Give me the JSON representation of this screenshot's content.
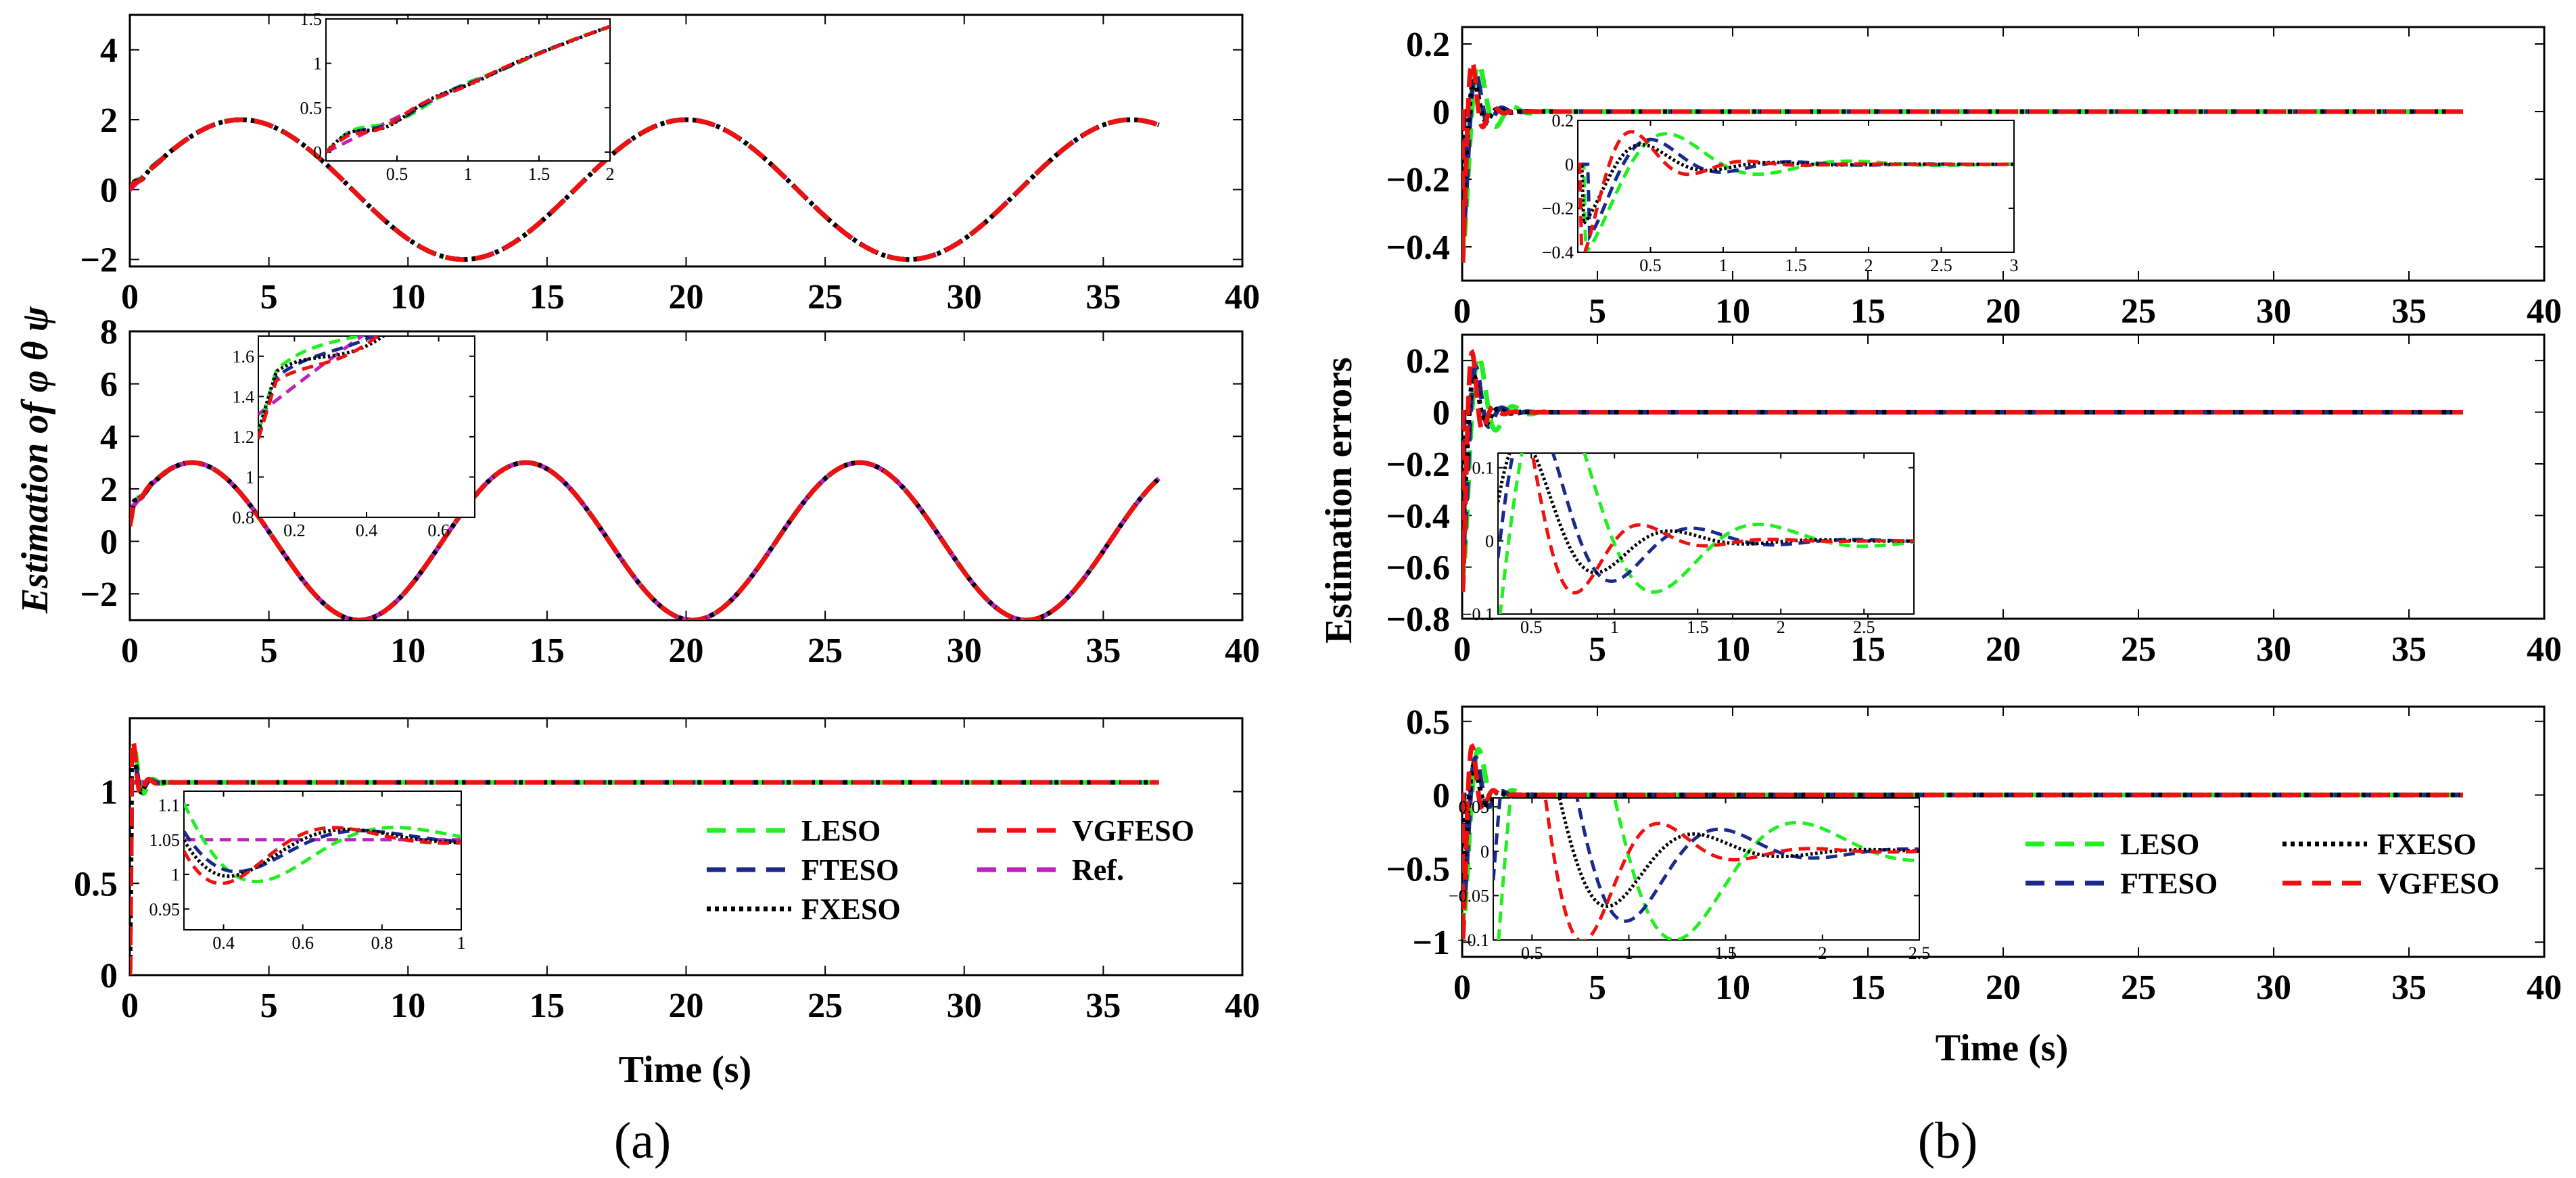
{
  "figure": {
    "panel_labels": [
      "(a)",
      "(b)"
    ],
    "ylabel_a": "Estimation of φ θ ψ",
    "ylabel_b": "Estimation errors",
    "xlabel": "Time (s)"
  },
  "series_styles": {
    "LESO": {
      "color": "#22ee22",
      "dash": "long"
    },
    "FTESO": {
      "color": "#1a2a8a",
      "dash": "long"
    },
    "FXESO": {
      "color": "#000000",
      "dash": "dot"
    },
    "VGFESO": {
      "color": "#ee1111",
      "dash": "long"
    },
    "Ref.": {
      "color": "#c020c0",
      "dash": "long"
    }
  },
  "chart_data": [
    {
      "id": "a1",
      "type": "line",
      "xlim": [
        0,
        40
      ],
      "ylim": [
        -2.2,
        5
      ],
      "xticks": [
        0,
        5,
        10,
        15,
        20,
        25,
        30,
        35,
        40
      ],
      "yticks": [
        -2,
        0,
        2,
        4
      ],
      "signal": {
        "kind": "sine",
        "amplitude": 2,
        "period": 16,
        "phase_shift": 0
      },
      "inset": {
        "xlim": [
          0,
          2
        ],
        "ylim": [
          -0.1,
          1.5
        ],
        "xticks": [
          0.5,
          1,
          1.5,
          2
        ],
        "xtick_labels": [
          "0.5",
          "1",
          "1.5",
          "2"
        ],
        "yticks": [
          0,
          0.5,
          1,
          1.5
        ],
        "ytick_labels": [
          "0",
          "0.5",
          "1",
          "1.5"
        ]
      }
    },
    {
      "id": "a2",
      "type": "line",
      "xlim": [
        0,
        40
      ],
      "ylim": [
        -3,
        8
      ],
      "xticks": [
        0,
        5,
        10,
        15,
        20,
        25,
        30,
        35,
        40
      ],
      "yticks": [
        -2,
        0,
        2,
        4,
        6,
        8
      ],
      "signal": {
        "kind": "sine",
        "amplitude": 3,
        "period": 12,
        "phase_shift": 0.4
      },
      "inset": {
        "xlim": [
          0.1,
          0.7
        ],
        "ylim": [
          0.8,
          1.7
        ],
        "xticks": [
          0.2,
          0.4,
          0.6
        ],
        "xtick_labels": [
          "0.2",
          "0.4",
          "0.6"
        ],
        "yticks": [
          0.8,
          1,
          1.2,
          1.4,
          1.6
        ],
        "ytick_labels": [
          "0.8",
          "1",
          "1.2",
          "1.4",
          "1.6"
        ]
      }
    },
    {
      "id": "a3",
      "type": "line",
      "xlim": [
        0,
        40
      ],
      "ylim": [
        0,
        1.4
      ],
      "xticks": [
        0,
        5,
        10,
        15,
        20,
        25,
        30,
        35,
        40
      ],
      "yticks": [
        0,
        0.5,
        1
      ],
      "yticks_labels": [
        "0",
        "0.5",
        "1"
      ],
      "signal": {
        "kind": "step",
        "value": 1.05
      },
      "inset": {
        "xlim": [
          0.3,
          1
        ],
        "ylim": [
          0.92,
          1.12
        ],
        "xticks": [
          0.4,
          0.6,
          0.8,
          1
        ],
        "xtick_labels": [
          "0.4",
          "0.6",
          "0.8",
          "1"
        ],
        "yticks": [
          0.95,
          1,
          1.05,
          1.1
        ],
        "ytick_labels": [
          "0.95",
          "1",
          "1.05",
          "1.1"
        ]
      },
      "legend": {
        "position": "lower-right",
        "entries": [
          "LESO",
          "VGFESO",
          "FTESO",
          "Ref.",
          "FXESO"
        ]
      }
    },
    {
      "id": "b1",
      "type": "line",
      "xlim": [
        0,
        40
      ],
      "ylim": [
        -0.5,
        0.25
      ],
      "xticks": [
        0,
        5,
        10,
        15,
        20,
        25,
        30,
        35,
        40
      ],
      "yticks": [
        -0.4,
        -0.2,
        0,
        0.2
      ],
      "signal": {
        "kind": "error",
        "overshoot": -0.45
      },
      "inset": {
        "xlim": [
          0,
          3
        ],
        "ylim": [
          -0.4,
          0.2
        ],
        "xticks": [
          0.5,
          1,
          1.5,
          2,
          2.5,
          3
        ],
        "xtick_labels": [
          "0.5",
          "1",
          "1.5",
          "2",
          "2.5",
          "3"
        ],
        "yticks": [
          -0.4,
          -0.2,
          0,
          0.2
        ],
        "ytick_labels": [
          "-0.4",
          "-0.2",
          "0",
          "0.2"
        ]
      }
    },
    {
      "id": "b2",
      "type": "line",
      "xlim": [
        0,
        40
      ],
      "ylim": [
        -0.8,
        0.3
      ],
      "xticks": [
        0,
        5,
        10,
        15,
        20,
        25,
        30,
        35,
        40
      ],
      "yticks": [
        -0.8,
        -0.6,
        -0.4,
        -0.2,
        0,
        0.2
      ],
      "signal": {
        "kind": "error",
        "overshoot": -0.7
      },
      "inset": {
        "xlim": [
          0.3,
          2.8
        ],
        "ylim": [
          -0.1,
          0.12
        ],
        "xticks": [
          0.5,
          1,
          1.5,
          2,
          2.5
        ],
        "xtick_labels": [
          "0.5",
          "1",
          "1.5",
          "2",
          "2.5"
        ],
        "yticks": [
          -0.1,
          0,
          0.1
        ],
        "ytick_labels": [
          "-0.1",
          "0",
          "0.1"
        ]
      }
    },
    {
      "id": "b3",
      "type": "line",
      "xlim": [
        0,
        40
      ],
      "ylim": [
        -1.1,
        0.6
      ],
      "xticks": [
        0,
        5,
        10,
        15,
        20,
        25,
        30,
        35,
        40
      ],
      "yticks": [
        -1,
        -0.5,
        0,
        0.5
      ],
      "signal": {
        "kind": "error",
        "overshoot": -1.0
      },
      "inset": {
        "xlim": [
          0.3,
          2.5
        ],
        "ylim": [
          -0.1,
          0.06
        ],
        "xticks": [
          0.5,
          1,
          1.5,
          2,
          2.5
        ],
        "xtick_labels": [
          "0.5",
          "1",
          "1.5",
          "2",
          "2.5"
        ],
        "yticks": [
          -0.1,
          -0.05,
          0,
          0.05
        ],
        "ytick_labels": [
          "-0.1",
          "-0.05",
          "0",
          "0.05"
        ]
      },
      "legend": {
        "position": "lower-right",
        "entries": [
          "LESO",
          "FXESO",
          "FTESO",
          "VGFESO"
        ]
      }
    }
  ]
}
